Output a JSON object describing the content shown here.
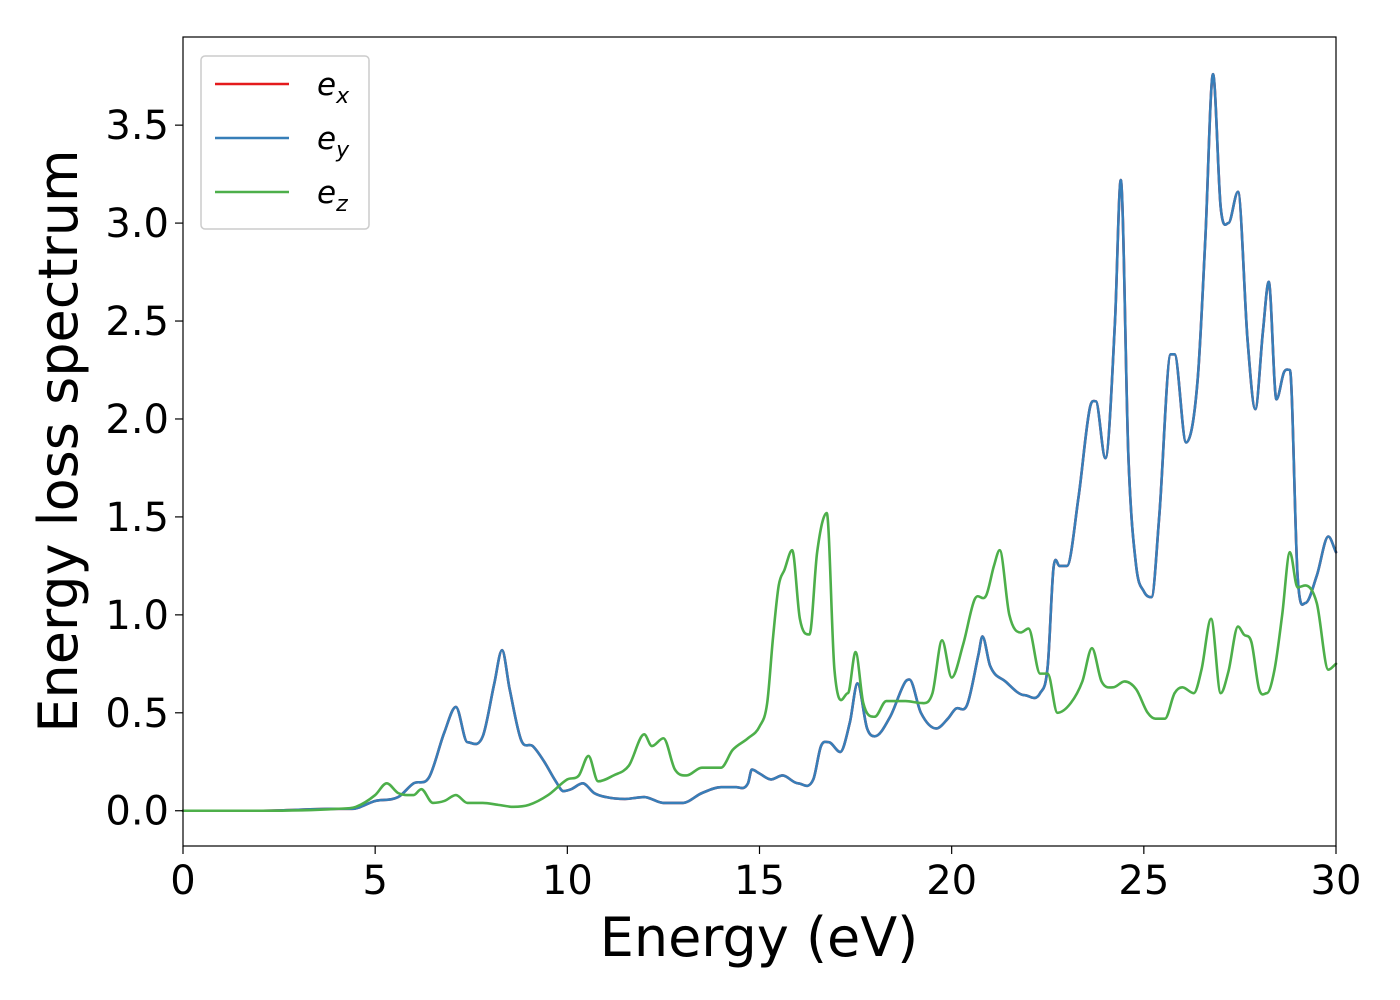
{
  "chart_data": {
    "type": "line",
    "title": "",
    "xlabel": "Energy (eV)",
    "ylabel": "Energy loss spectrum",
    "xlim": [
      0,
      30
    ],
    "ylim": [
      -0.18,
      3.95
    ],
    "xticks": [
      0,
      5,
      10,
      15,
      20,
      25,
      30
    ],
    "yticks": [
      0.0,
      0.5,
      1.0,
      1.5,
      2.0,
      2.5,
      3.0,
      3.5
    ],
    "xtick_labels": [
      "0",
      "5",
      "10",
      "15",
      "20",
      "25",
      "30"
    ],
    "ytick_labels": [
      "0.0",
      "0.5",
      "1.0",
      "1.5",
      "2.0",
      "2.5",
      "3.0",
      "3.5"
    ],
    "grid": false,
    "legend": {
      "position": "top-left",
      "entries": [
        {
          "main": "e",
          "sub": "x"
        },
        {
          "main": "e",
          "sub": "y"
        },
        {
          "main": "e",
          "sub": "z"
        }
      ]
    },
    "series": [
      {
        "name": "e_x",
        "color": "#e41a1c",
        "x": [
          0,
          2,
          4,
          4.4,
          5,
          5.6,
          6,
          6.4,
          6.8,
          7.1,
          7.4,
          7.8,
          8.1,
          8.3,
          8.5,
          8.8,
          9.1,
          9.4,
          9.7,
          9.9,
          10.1,
          10.4,
          10.7,
          11,
          11.5,
          12,
          12.5,
          13,
          13.5,
          14,
          14.4,
          14.7,
          14.8,
          15,
          15.3,
          15.6,
          16,
          16.4,
          16.6,
          16.8,
          17.1,
          17.35,
          17.55,
          17.8,
          18,
          18.4,
          18.8,
          18.9,
          19.2,
          19.6,
          19.9,
          20.1,
          20.4,
          20.7,
          20.8,
          21,
          21.4,
          21.9,
          22.3,
          22.5,
          22.65,
          22.8,
          23,
          23.3,
          23.6,
          23.75,
          24,
          24.25,
          24.4,
          24.6,
          24.8,
          25,
          25.2,
          25.4,
          25.7,
          25.8,
          26.1,
          26.4,
          26.6,
          26.8,
          27,
          27.2,
          27.45,
          27.7,
          27.9,
          28.1,
          28.25,
          28.45,
          28.65,
          28.8,
          29,
          29.2,
          29.5,
          29.8,
          30
        ],
        "y": [
          0,
          0,
          0.01,
          0.01,
          0.05,
          0.07,
          0.14,
          0.17,
          0.4,
          0.53,
          0.35,
          0.38,
          0.65,
          0.82,
          0.62,
          0.36,
          0.33,
          0.25,
          0.15,
          0.1,
          0.11,
          0.14,
          0.09,
          0.07,
          0.06,
          0.07,
          0.04,
          0.04,
          0.09,
          0.12,
          0.12,
          0.14,
          0.21,
          0.19,
          0.16,
          0.18,
          0.14,
          0.16,
          0.33,
          0.35,
          0.3,
          0.45,
          0.65,
          0.42,
          0.38,
          0.48,
          0.66,
          0.67,
          0.5,
          0.42,
          0.47,
          0.52,
          0.54,
          0.8,
          0.89,
          0.74,
          0.66,
          0.59,
          0.6,
          0.74,
          1.24,
          1.25,
          1.25,
          1.6,
          2.06,
          2.09,
          1.8,
          2.5,
          3.22,
          1.8,
          1.25,
          1.12,
          1.09,
          1.5,
          2.33,
          2.33,
          1.88,
          2.2,
          2.92,
          3.76,
          3.08,
          3.0,
          3.16,
          2.4,
          2.05,
          2.45,
          2.7,
          2.1,
          2.24,
          2.25,
          1.2,
          1.06,
          1.2,
          1.4,
          1.32
        ]
      },
      {
        "name": "e_y",
        "color": "#377eb8",
        "x": [
          0,
          2,
          4,
          4.4,
          5,
          5.6,
          6,
          6.4,
          6.8,
          7.1,
          7.4,
          7.8,
          8.1,
          8.3,
          8.5,
          8.8,
          9.1,
          9.4,
          9.7,
          9.9,
          10.1,
          10.4,
          10.7,
          11,
          11.5,
          12,
          12.5,
          13,
          13.5,
          14,
          14.4,
          14.7,
          14.8,
          15,
          15.3,
          15.6,
          16,
          16.4,
          16.6,
          16.8,
          17.1,
          17.35,
          17.55,
          17.8,
          18,
          18.4,
          18.8,
          18.9,
          19.2,
          19.6,
          19.9,
          20.1,
          20.4,
          20.7,
          20.8,
          21,
          21.4,
          21.9,
          22.3,
          22.5,
          22.65,
          22.8,
          23,
          23.3,
          23.6,
          23.75,
          24,
          24.25,
          24.4,
          24.6,
          24.8,
          25,
          25.2,
          25.4,
          25.7,
          25.8,
          26.1,
          26.4,
          26.6,
          26.8,
          27,
          27.2,
          27.45,
          27.7,
          27.9,
          28.1,
          28.25,
          28.45,
          28.65,
          28.8,
          29,
          29.2,
          29.5,
          29.8,
          30
        ],
        "y": [
          0,
          0,
          0.01,
          0.01,
          0.05,
          0.07,
          0.14,
          0.17,
          0.4,
          0.53,
          0.35,
          0.38,
          0.65,
          0.82,
          0.62,
          0.36,
          0.33,
          0.25,
          0.15,
          0.1,
          0.11,
          0.14,
          0.09,
          0.07,
          0.06,
          0.07,
          0.04,
          0.04,
          0.09,
          0.12,
          0.12,
          0.14,
          0.21,
          0.19,
          0.16,
          0.18,
          0.14,
          0.16,
          0.33,
          0.35,
          0.3,
          0.45,
          0.65,
          0.42,
          0.38,
          0.48,
          0.66,
          0.67,
          0.5,
          0.42,
          0.47,
          0.52,
          0.54,
          0.8,
          0.89,
          0.74,
          0.66,
          0.59,
          0.6,
          0.74,
          1.24,
          1.25,
          1.25,
          1.6,
          2.06,
          2.09,
          1.8,
          2.5,
          3.22,
          1.8,
          1.25,
          1.12,
          1.09,
          1.5,
          2.33,
          2.33,
          1.88,
          2.2,
          2.92,
          3.76,
          3.08,
          3.0,
          3.16,
          2.4,
          2.05,
          2.45,
          2.7,
          2.1,
          2.24,
          2.25,
          1.2,
          1.06,
          1.2,
          1.4,
          1.32
        ]
      },
      {
        "name": "e_z",
        "color": "#4daf4a",
        "x": [
          0,
          2,
          4,
          4.5,
          5,
          5.3,
          5.6,
          6,
          6.2,
          6.5,
          6.8,
          7.1,
          7.4,
          7.8,
          8.2,
          8.6,
          9,
          9.5,
          10,
          10.3,
          10.55,
          10.8,
          11.2,
          11.6,
          12,
          12.2,
          12.5,
          12.8,
          13.1,
          13.5,
          14,
          14.3,
          14.7,
          15,
          15.2,
          15.35,
          15.5,
          15.65,
          15.85,
          16.05,
          16.3,
          16.5,
          16.75,
          16.95,
          17.3,
          17.5,
          17.7,
          18,
          18.3,
          18.8,
          19.2,
          19.5,
          19.75,
          20,
          20.3,
          20.6,
          20.9,
          21.1,
          21.25,
          21.5,
          21.8,
          22,
          22.3,
          22.5,
          22.75,
          23.1,
          23.4,
          23.65,
          23.9,
          24.2,
          24.5,
          24.8,
          25.1,
          25.3,
          25.55,
          25.8,
          26,
          26.3,
          26.5,
          26.75,
          27,
          27.2,
          27.45,
          27.6,
          27.8,
          28,
          28.2,
          28.4,
          28.6,
          28.8,
          29,
          29.2,
          29.5,
          29.8,
          30
        ],
        "y": [
          0,
          0,
          0.01,
          0.02,
          0.08,
          0.14,
          0.09,
          0.08,
          0.11,
          0.04,
          0.05,
          0.08,
          0.04,
          0.04,
          0.03,
          0.02,
          0.03,
          0.08,
          0.16,
          0.18,
          0.28,
          0.15,
          0.18,
          0.23,
          0.39,
          0.33,
          0.37,
          0.21,
          0.18,
          0.22,
          0.22,
          0.31,
          0.37,
          0.43,
          0.55,
          0.88,
          1.15,
          1.23,
          1.33,
          0.98,
          0.9,
          1.32,
          1.52,
          0.72,
          0.6,
          0.81,
          0.55,
          0.48,
          0.56,
          0.56,
          0.55,
          0.6,
          0.87,
          0.68,
          0.85,
          1.08,
          1.1,
          1.25,
          1.33,
          1.0,
          0.91,
          0.93,
          0.7,
          0.7,
          0.5,
          0.55,
          0.66,
          0.83,
          0.66,
          0.63,
          0.66,
          0.62,
          0.5,
          0.47,
          0.47,
          0.6,
          0.63,
          0.6,
          0.72,
          0.98,
          0.6,
          0.71,
          0.94,
          0.9,
          0.86,
          0.62,
          0.6,
          0.72,
          1.0,
          1.32,
          1.14,
          1.15,
          1.06,
          0.72,
          0.75
        ]
      }
    ]
  }
}
